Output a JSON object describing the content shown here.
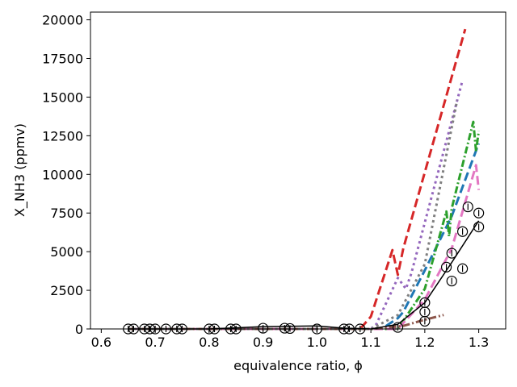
{
  "chart_data": {
    "type": "line",
    "xlabel": "equivalence ratio, ϕ",
    "ylabel": "X_NH3 (ppmv)",
    "xlim": [
      0.58,
      1.35
    ],
    "ylim": [
      0,
      20500
    ],
    "xticks": [
      0.6,
      0.7,
      0.8,
      0.9,
      1.0,
      1.1,
      1.2,
      1.3
    ],
    "xtick_labels": [
      "0.6",
      "0.7",
      "0.8",
      "0.9",
      "1.0",
      "1.1",
      "1.2",
      "1.3"
    ],
    "yticks": [
      0,
      2500,
      5000,
      7500,
      10000,
      12500,
      15000,
      17500,
      20000
    ],
    "ytick_labels": [
      "0",
      "2500",
      "5000",
      "7500",
      "10000",
      "12500",
      "15000",
      "17500",
      "20000"
    ],
    "grid": false,
    "series": [
      {
        "color": "#d62728",
        "dash": "11,5",
        "width": 3,
        "x": [
          0.65,
          1.08,
          1.1,
          1.14,
          1.15,
          1.16,
          1.275
        ],
        "y": [
          0,
          0,
          800,
          5100,
          3500,
          5200,
          19400
        ]
      },
      {
        "color": "#9467bd",
        "dash": "3,4",
        "width": 3,
        "x": [
          0.65,
          1.1,
          1.11,
          1.15,
          1.165,
          1.175,
          1.27
        ],
        "y": [
          0,
          0,
          300,
          3300,
          2600,
          3600,
          16100
        ]
      },
      {
        "color": "#1f77b4",
        "dash": "11,5",
        "width": 3,
        "x": [
          0.65,
          1.12,
          1.15,
          1.16,
          1.2,
          1.25,
          1.3
        ],
        "y": [
          0,
          0,
          700,
          1100,
          3800,
          7300,
          12000
        ]
      },
      {
        "color": "#2ca02c",
        "dash": "9,3,2,3",
        "width": 3,
        "x": [
          0.65,
          1.15,
          1.2,
          1.24,
          1.245,
          1.25,
          1.29,
          1.295,
          1.3
        ],
        "y": [
          0,
          0,
          2600,
          7600,
          6000,
          7800,
          13400,
          11500,
          12800
        ]
      },
      {
        "color": "#e377c2",
        "dash": "11,5",
        "width": 3,
        "x": [
          0.65,
          1.15,
          1.2,
          1.25,
          1.295,
          1.3
        ],
        "y": [
          0,
          0,
          1900,
          5200,
          10600,
          9000
        ]
      },
      {
        "color": "#8c564b",
        "dash": "9,3,2,3",
        "width": 3,
        "x": [
          0.65,
          1.1,
          1.16,
          1.2,
          1.235
        ],
        "y": [
          0,
          0,
          200,
          600,
          900
        ]
      },
      {
        "color": "#7f7f7f",
        "dash": "3,4",
        "width": 3,
        "x": [
          0.65,
          1.1,
          1.15,
          1.2,
          1.26
        ],
        "y": [
          0,
          0,
          900,
          4200,
          14800
        ]
      },
      {
        "color": "#000000",
        "dash": "",
        "width": 1.5,
        "x": [
          0.65,
          0.8,
          0.9,
          1.0,
          1.05,
          1.1,
          1.15,
          1.2,
          1.25,
          1.3
        ],
        "y": [
          0,
          0,
          150,
          200,
          50,
          0,
          300,
          1700,
          4300,
          7000
        ]
      }
    ],
    "markers": {
      "x": [
        0.65,
        0.66,
        0.68,
        0.69,
        0.7,
        0.72,
        0.74,
        0.75,
        0.8,
        0.81,
        0.84,
        0.85,
        0.9,
        0.94,
        0.95,
        1.0,
        1.05,
        1.06,
        1.08,
        1.15,
        1.2,
        1.2,
        1.2,
        1.24,
        1.25,
        1.25,
        1.27,
        1.27,
        1.28,
        1.3,
        1.3
      ],
      "y": [
        0,
        0,
        0,
        0,
        0,
        0,
        0,
        0,
        0,
        0,
        0,
        0,
        50,
        50,
        30,
        0,
        0,
        0,
        0,
        100,
        1700,
        1100,
        500,
        4000,
        4900,
        3100,
        6300,
        3900,
        7900,
        7500,
        6600
      ]
    }
  }
}
